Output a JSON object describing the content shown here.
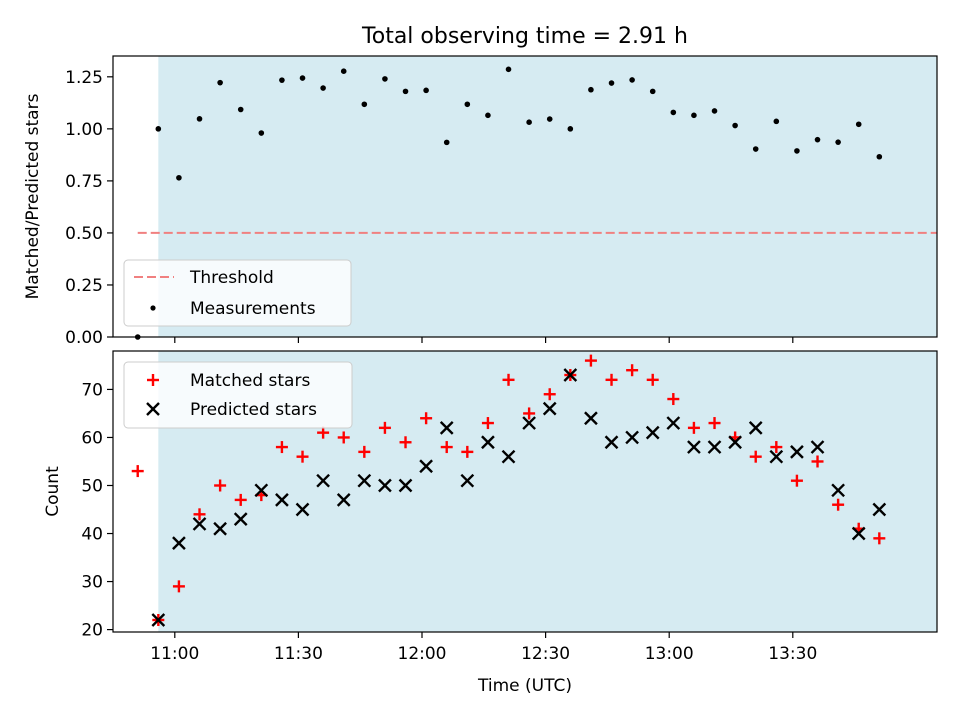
{
  "figure": {
    "title": "Total observing time = 2.91 h"
  },
  "colors": {
    "shade": "#add8e6",
    "threshold": "#f08080",
    "measurements": "#000000",
    "matched": "#ff0000",
    "predicted": "#000000"
  },
  "chart_data": [
    {
      "type": "scatter",
      "name": "top-panel",
      "ylabel": "Matched/Predicted stars",
      "ylim": [
        0,
        1.35
      ],
      "yticks": [
        "0.00",
        "0.25",
        "0.50",
        "0.75",
        "1.00",
        "1.25"
      ],
      "ytick_values": [
        0,
        0.25,
        0.5,
        0.75,
        1.0,
        1.25
      ],
      "xlim": [
        "10:45",
        "14:05"
      ],
      "shaded_range": [
        "10:56",
        "14:06"
      ],
      "threshold": {
        "label": "Threshold",
        "value": 0.5,
        "x_range": [
          "10:51",
          "14:06"
        ]
      },
      "legend": {
        "position": "lower-left",
        "entries": [
          "Threshold",
          "Measurements"
        ]
      },
      "series": [
        {
          "name": "Measurements",
          "x": [
            "10:51",
            "10:56",
            "11:01",
            "11:06",
            "11:11",
            "11:16",
            "11:21",
            "11:26",
            "11:31",
            "11:36",
            "11:41",
            "11:46",
            "11:51",
            "11:56",
            "12:01",
            "12:06",
            "12:11",
            "12:16",
            "12:21",
            "12:26",
            "12:31",
            "12:36",
            "12:41",
            "12:46",
            "12:51",
            "12:56",
            "13:01",
            "13:06",
            "13:11",
            "13:16",
            "13:21",
            "13:26",
            "13:31",
            "13:36",
            "13:41",
            "13:46",
            "13:51"
          ],
          "y": [
            0.0,
            1.0,
            0.765,
            1.048,
            1.222,
            1.093,
            0.98,
            1.234,
            1.244,
            1.196,
            1.277,
            1.118,
            1.24,
            1.18,
            1.185,
            0.935,
            1.118,
            1.065,
            1.286,
            1.032,
            1.047,
            1.0,
            1.188,
            1.22,
            1.235,
            1.18,
            1.079,
            1.065,
            1.086,
            1.016,
            0.903,
            1.036,
            0.894,
            0.948,
            0.936,
            1.022,
            0.866
          ]
        }
      ]
    },
    {
      "type": "scatter",
      "name": "bottom-panel",
      "xlabel": "Time (UTC)",
      "ylabel": "Count",
      "ylim": [
        19.5,
        78
      ],
      "yticks": [
        "20",
        "30",
        "40",
        "50",
        "60",
        "70"
      ],
      "ytick_values": [
        20,
        30,
        40,
        50,
        60,
        70
      ],
      "xlim": [
        "10:45",
        "14:05"
      ],
      "xticks": [
        "11:00",
        "11:30",
        "12:00",
        "12:30",
        "13:00",
        "13:30"
      ],
      "shaded_range": [
        "10:56",
        "14:06"
      ],
      "legend": {
        "position": "upper-left",
        "entries": [
          "Matched stars",
          "Predicted stars"
        ]
      },
      "series": [
        {
          "name": "Matched stars",
          "marker": "+",
          "x": [
            "10:51",
            "10:56",
            "11:01",
            "11:06",
            "11:11",
            "11:16",
            "11:21",
            "11:26",
            "11:31",
            "11:36",
            "11:41",
            "11:46",
            "11:51",
            "11:56",
            "12:01",
            "12:06",
            "12:11",
            "12:16",
            "12:21",
            "12:26",
            "12:31",
            "12:36",
            "12:41",
            "12:46",
            "12:51",
            "12:56",
            "13:01",
            "13:06",
            "13:11",
            "13:16",
            "13:21",
            "13:26",
            "13:31",
            "13:36",
            "13:41",
            "13:46",
            "13:51"
          ],
          "y": [
            53,
            22,
            29,
            44,
            50,
            47,
            48,
            58,
            56,
            61,
            60,
            57,
            62,
            59,
            64,
            58,
            57,
            63,
            72,
            65,
            69,
            73,
            76,
            72,
            74,
            72,
            68,
            62,
            63,
            60,
            56,
            58,
            51,
            55,
            46,
            41,
            39
          ]
        },
        {
          "name": "Predicted stars",
          "marker": "x",
          "x": [
            "10:56",
            "11:01",
            "11:06",
            "11:11",
            "11:16",
            "11:21",
            "11:26",
            "11:31",
            "11:36",
            "11:41",
            "11:46",
            "11:51",
            "11:56",
            "12:01",
            "12:06",
            "12:11",
            "12:16",
            "12:21",
            "12:26",
            "12:31",
            "12:36",
            "12:41",
            "12:46",
            "12:51",
            "12:56",
            "13:01",
            "13:06",
            "13:11",
            "13:16",
            "13:21",
            "13:26",
            "13:31",
            "13:36",
            "13:41",
            "13:46",
            "13:51"
          ],
          "y": [
            22,
            38,
            42,
            41,
            43,
            49,
            47,
            45,
            51,
            47,
            51,
            50,
            50,
            54,
            62,
            51,
            59,
            56,
            63,
            66,
            73,
            64,
            59,
            60,
            61,
            63,
            58,
            58,
            59,
            62,
            56,
            57,
            58,
            49,
            40,
            45
          ]
        }
      ]
    }
  ]
}
